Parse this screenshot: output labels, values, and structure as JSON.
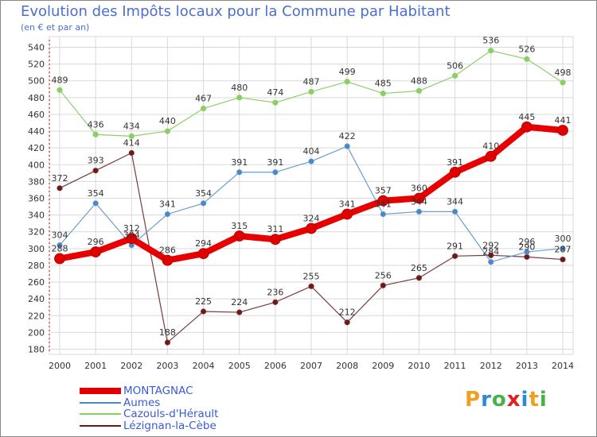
{
  "title": "Evolution des Impôts locaux pour la Commune par Habitant",
  "subtitle": "(en € et par an)",
  "logo": {
    "text": "Proxiti",
    "letters": [
      "P",
      "r",
      "o",
      "x",
      "i",
      "t",
      "i"
    ],
    "colors": [
      "#f0a020",
      "#2a8ad8",
      "#4ab04a",
      "#e02020",
      "#2a8ad8",
      "#f0a020",
      "#4ab04a"
    ]
  },
  "colors": {
    "border": "#888888",
    "grid": "#d9d9d9",
    "axis_text": "#333333",
    "label_text": "#333333"
  },
  "chart_data": {
    "type": "line",
    "title": "Evolution des Impôts locaux pour la Commune par Habitant",
    "subtitle": "(en € et par an)",
    "xlabel": "",
    "ylabel": "",
    "ylim": [
      180,
      540
    ],
    "yticks": [
      180,
      200,
      220,
      240,
      260,
      280,
      300,
      320,
      340,
      360,
      380,
      400,
      420,
      440,
      460,
      480,
      500,
      520,
      540
    ],
    "categories": [
      "2000",
      "2001",
      "2002",
      "2003",
      "2004",
      "2005",
      "2006",
      "2007",
      "2008",
      "2009",
      "2010",
      "2011",
      "2012",
      "2013",
      "2014"
    ],
    "legend_position": "bottom-left",
    "series": [
      {
        "name": "Cazouls-d'Hérault",
        "color": "#88d060",
        "line_color": "#8ecf6a",
        "width": 1.2,
        "values": [
          489,
          436,
          434,
          440,
          467,
          480,
          474,
          487,
          499,
          485,
          488,
          506,
          536,
          526,
          498
        ]
      },
      {
        "name": "Lézignan-la-Cèbe",
        "color": "#701818",
        "line_color": "#7a3a3a",
        "width": 1.2,
        "values": [
          372,
          393,
          414,
          188,
          225,
          224,
          236,
          255,
          212,
          256,
          265,
          291,
          292,
          290,
          287
        ]
      },
      {
        "name": "Aumes",
        "color": "#4a86c8",
        "line_color": "#6a9fd0",
        "width": 1.2,
        "values": [
          304,
          354,
          304,
          341,
          354,
          391,
          391,
          404,
          422,
          341,
          344,
          344,
          284,
          296,
          300
        ]
      },
      {
        "name": "MONTAGNAC",
        "color": "#e00000",
        "line_color": "#e80000",
        "width": 8,
        "values": [
          288,
          296,
          312,
          286,
          294,
          315,
          311,
          324,
          341,
          357,
          360,
          391,
          410,
          445,
          441
        ]
      }
    ],
    "value_labels": [
      {
        "series": "Cazouls-d'Hérault",
        "labels": [
          "489",
          "436",
          "434",
          "440",
          "467",
          "480",
          "474",
          "487",
          "499",
          "485",
          "488",
          "506",
          "536",
          "526",
          "498"
        ]
      },
      {
        "series": "Lézignan-la-Cèbe",
        "labels": [
          "372",
          "393",
          "414",
          "188",
          "225",
          "224",
          "236",
          "255",
          "212",
          "256",
          "265",
          "291",
          "292",
          "290",
          "287"
        ]
      },
      {
        "series": "Aumes",
        "labels": [
          "304",
          "354",
          "304",
          "341",
          "354",
          "391",
          "391",
          "404",
          "422",
          "341",
          "344",
          "344",
          "284",
          "296",
          "300"
        ]
      },
      {
        "series": "MONTAGNAC",
        "labels": [
          "288",
          "296",
          "312",
          "286",
          "294",
          "315",
          "311",
          "324",
          "341",
          "357",
          "360",
          "391",
          "410",
          "445",
          "441"
        ]
      }
    ]
  },
  "legend": [
    {
      "name": "MONTAGNAC",
      "color": "#e00000",
      "thickness": "thick"
    },
    {
      "name": "Aumes",
      "color": "#4a86c8",
      "thickness": "thin"
    },
    {
      "name": "Cazouls-d'Hérault",
      "color": "#88d060",
      "thickness": "thin"
    },
    {
      "name": "Lézignan-la-Cèbe",
      "color": "#701818",
      "thickness": "thin"
    }
  ]
}
